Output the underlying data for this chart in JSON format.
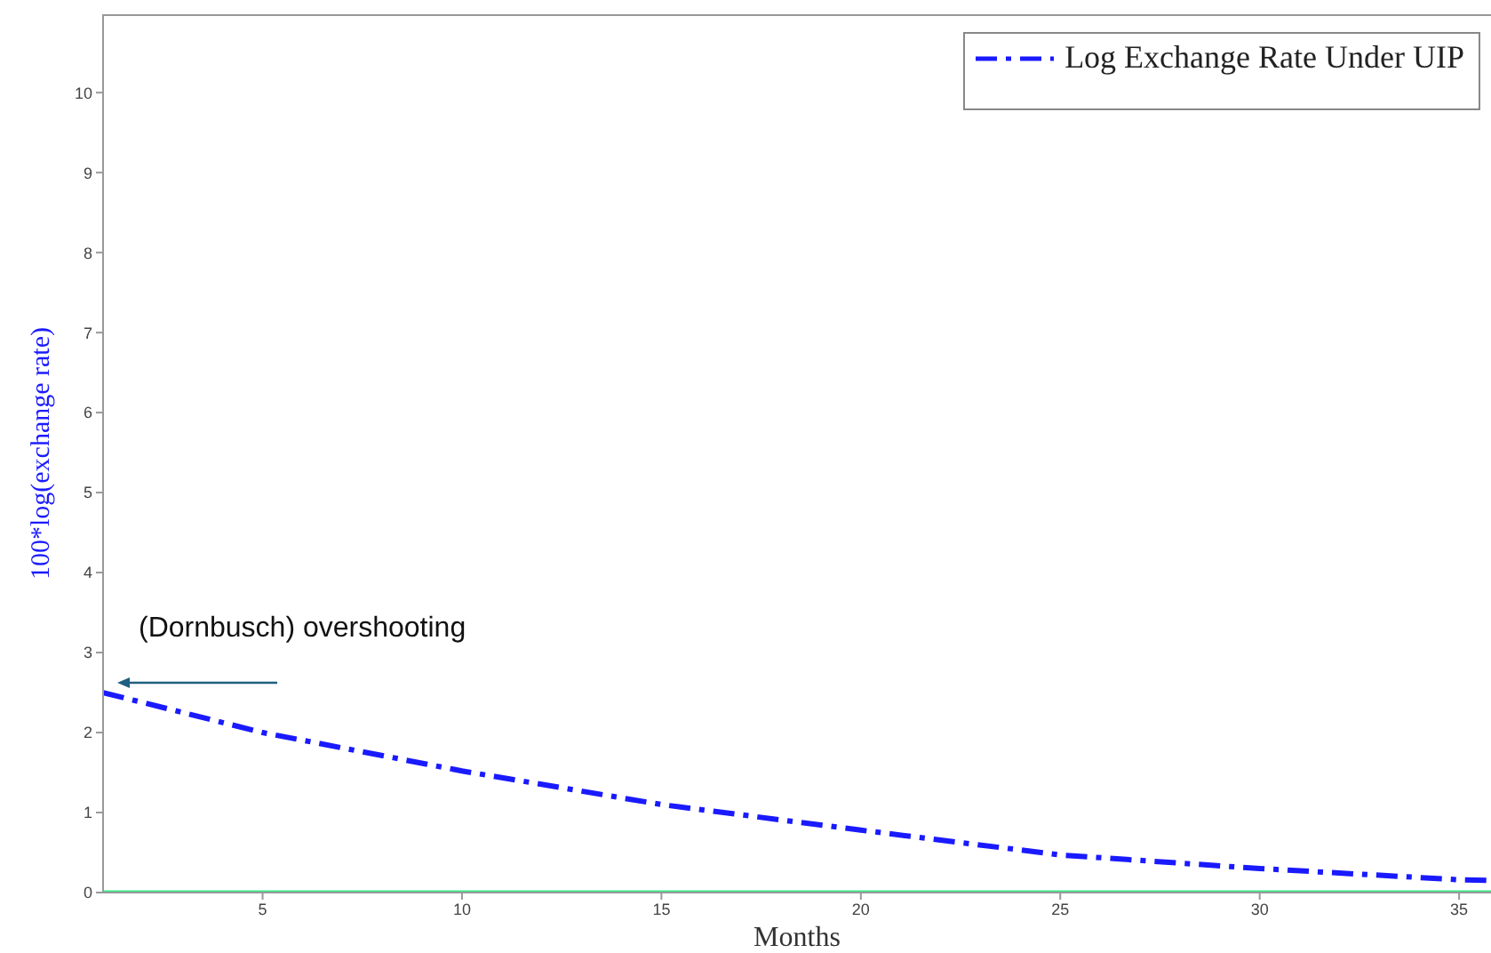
{
  "chart_data": {
    "type": "line",
    "xlabel": "Months",
    "ylabel": "100*log(exchange rate)",
    "xlim": [
      1,
      35.8
    ],
    "ylim": [
      0,
      10.98
    ],
    "xticks": [
      5,
      10,
      15,
      20,
      25,
      30,
      35
    ],
    "yticks": [
      0,
      1,
      2,
      3,
      4,
      5,
      6,
      7,
      8,
      9,
      10
    ],
    "legend": "top right",
    "annotations": [
      {
        "text": "(Dornbusch) overshooting",
        "x": 1,
        "y": 2.5
      }
    ],
    "series": [
      {
        "name": "Log Exchange Rate Under UIP",
        "color": "#1a1aff",
        "line_style": "dashed",
        "x": [
          1,
          5,
          10,
          15,
          20,
          25,
          30,
          35,
          35.8
        ],
        "values": [
          2.5,
          2.0,
          1.52,
          1.1,
          0.78,
          0.47,
          0.3,
          0.16,
          0.15
        ]
      },
      {
        "color": "#33ee88",
        "line_style": "solid",
        "x": [
          1,
          35.8
        ],
        "values": [
          0,
          0
        ]
      }
    ]
  }
}
